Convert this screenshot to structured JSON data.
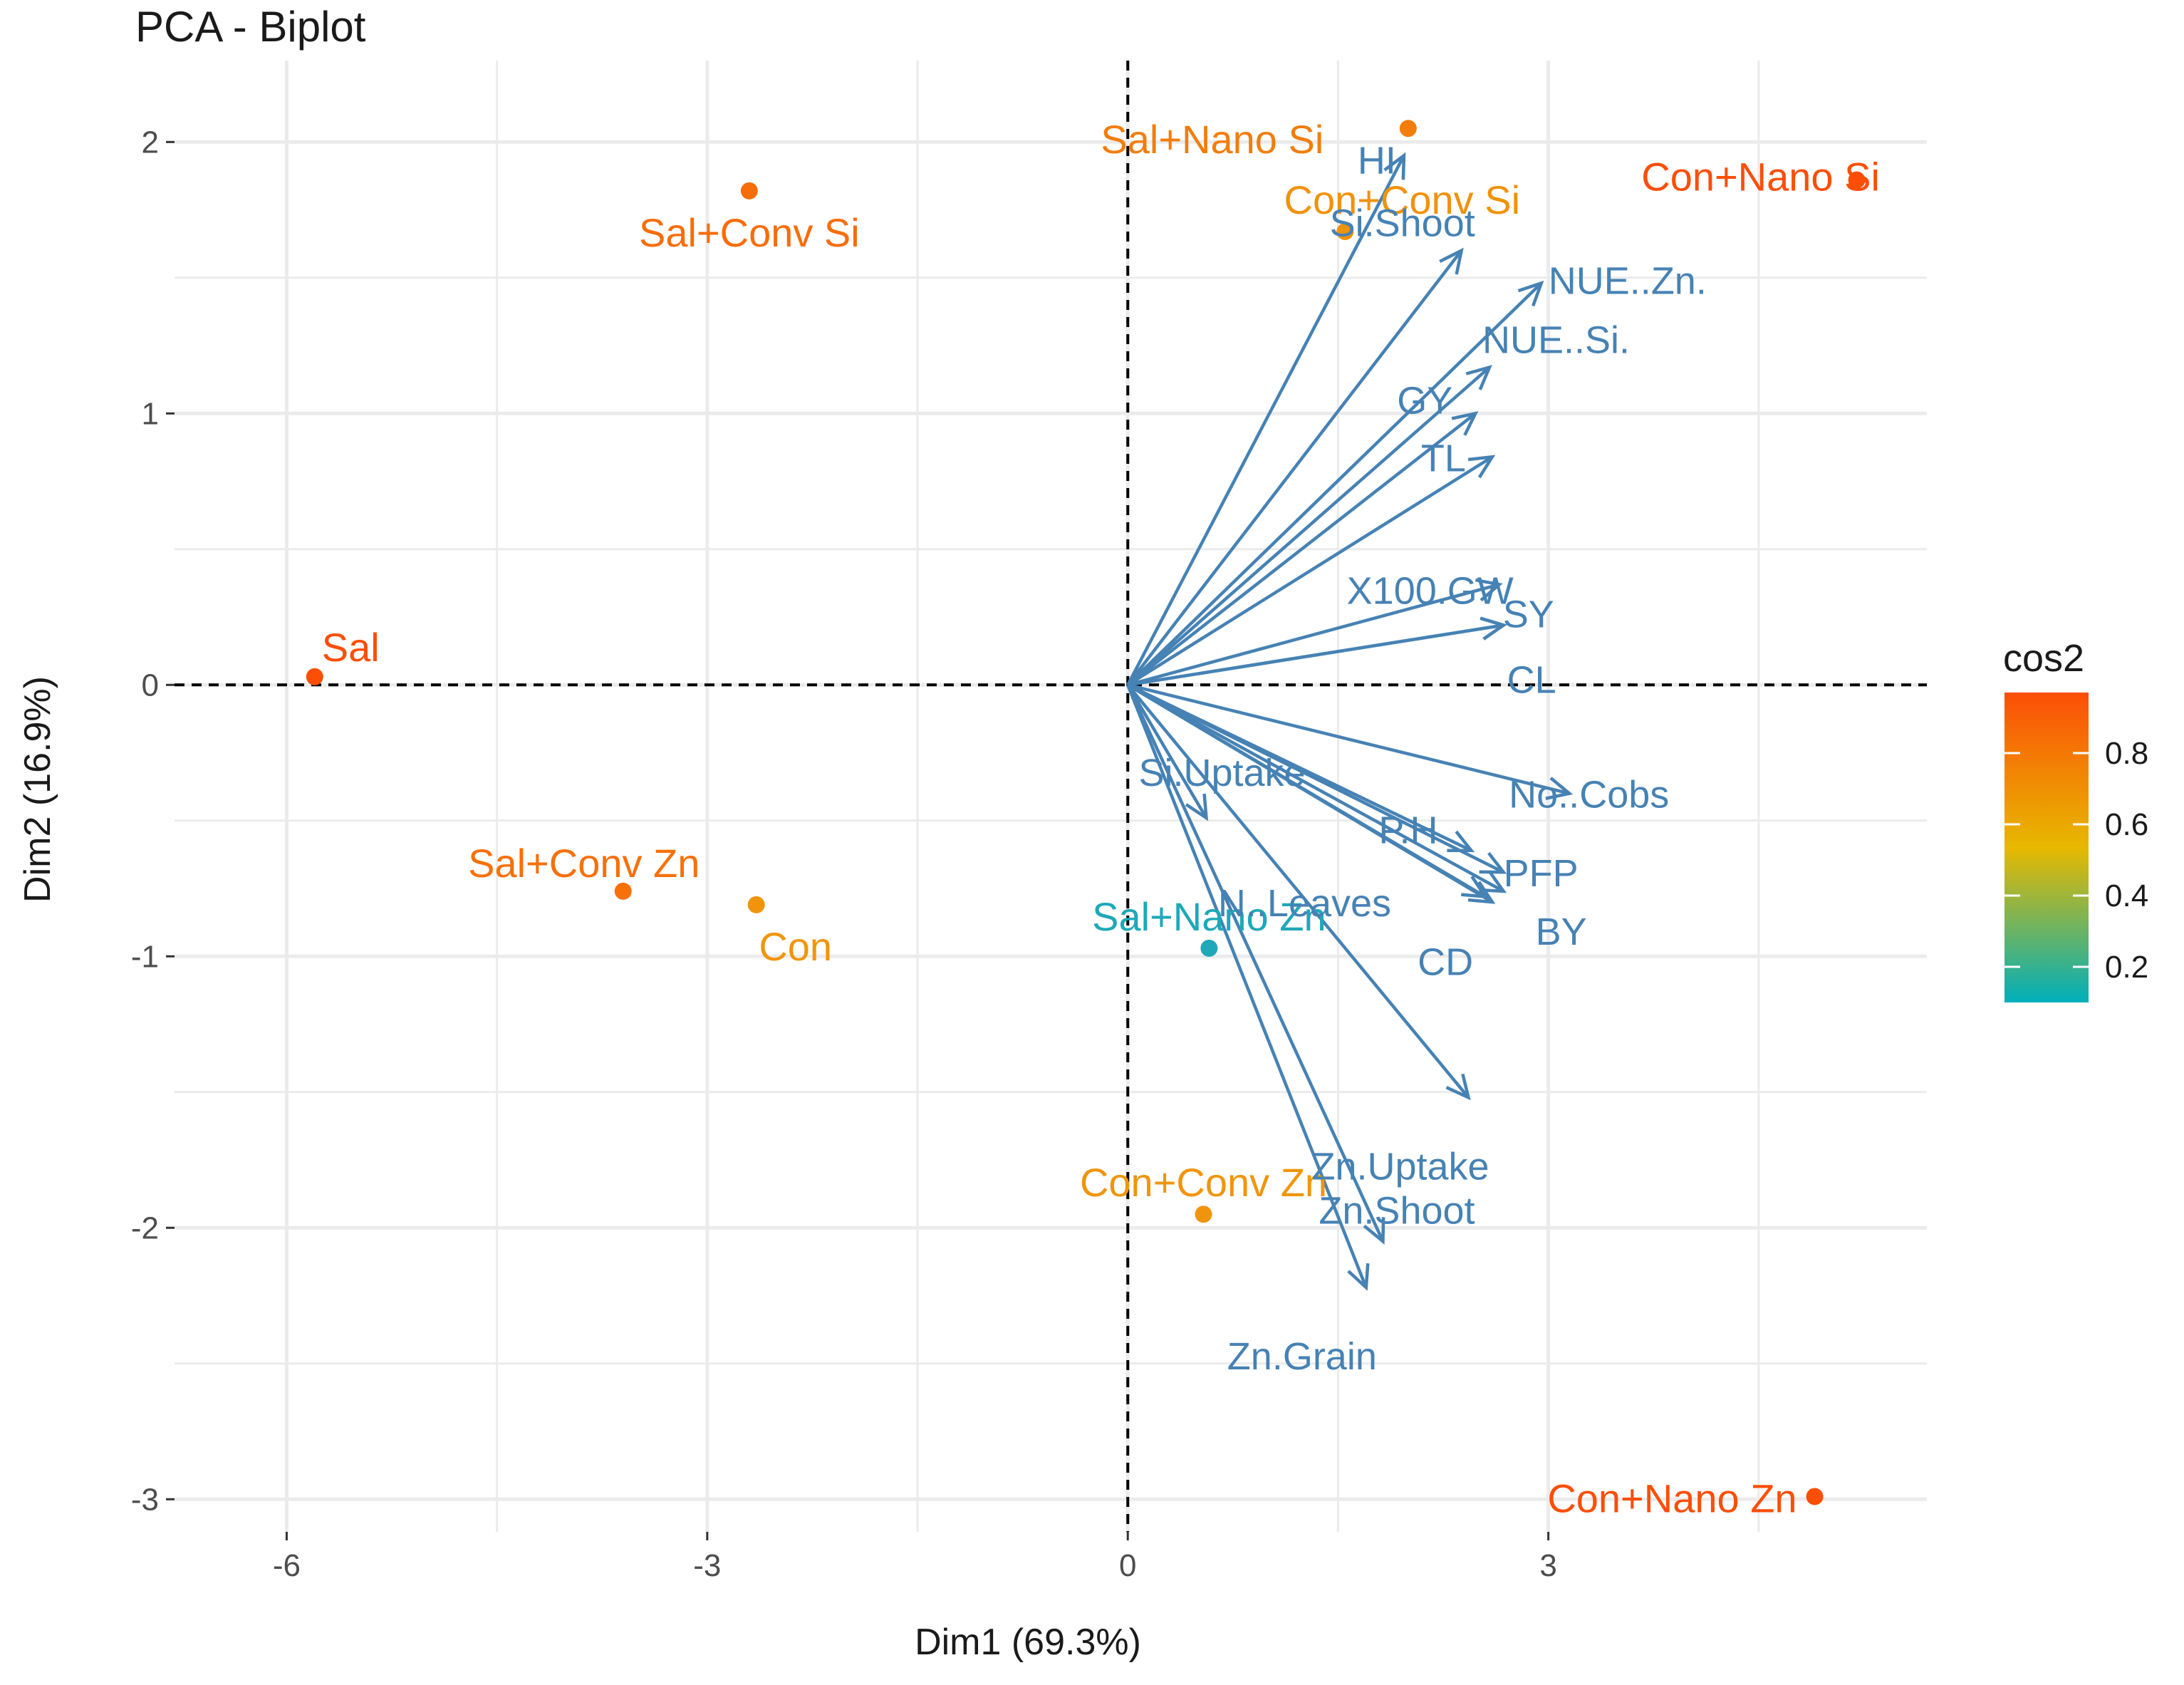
{
  "chart_data": {
    "type": "scatter",
    "title": "PCA - Biplot",
    "xlabel": "Dim1 (69.3%)",
    "ylabel": "Dim2 (16.9%)",
    "xlim": [
      -6.8,
      5.7
    ],
    "ylim": [
      -3.12,
      2.3
    ],
    "xticks": [
      -6,
      -3,
      0,
      3
    ],
    "yticks": [
      2,
      1,
      0,
      -1,
      -2,
      -3
    ],
    "grid": true,
    "reference_lines": [
      "x = 0 (dashed)",
      "y = 0 (dashed)"
    ],
    "individuals": [
      {
        "name": "Sal",
        "x": -5.8,
        "y": 0.03,
        "cos2": 0.95,
        "color": "#FC4E07"
      },
      {
        "name": "Sal+Conv Si",
        "x": -2.7,
        "y": 1.82,
        "cos2": 0.9,
        "color": "#F76D0A"
      },
      {
        "name": "Sal+Conv Zn",
        "x": -3.6,
        "y": -0.76,
        "cos2": 0.88,
        "color": "#F7700A"
      },
      {
        "name": "Con",
        "x": -2.65,
        "y": -0.81,
        "cos2": 0.72,
        "color": "#F0950B"
      },
      {
        "name": "Sal+Nano Si",
        "x": 2.0,
        "y": 2.05,
        "cos2": 0.82,
        "color": "#F27D0B"
      },
      {
        "name": "Con+Conv Si",
        "x": 1.55,
        "y": 1.67,
        "cos2": 0.75,
        "color": "#F0920B"
      },
      {
        "name": "Con+Nano Si",
        "x": 5.2,
        "y": 1.86,
        "cos2": 0.95,
        "color": "#FC4E07"
      },
      {
        "name": "Sal+Nano Zn",
        "x": 0.58,
        "y": -0.97,
        "cos2": 0.12,
        "color": "#1FA8B8"
      },
      {
        "name": "Con+Conv Zn",
        "x": 0.54,
        "y": -1.95,
        "cos2": 0.72,
        "color": "#F0950B"
      },
      {
        "name": "Con+Nano Zn",
        "x": 4.9,
        "y": -2.99,
        "cos2": 0.95,
        "color": "#FC4E07"
      }
    ],
    "variables": [
      {
        "name": "HI",
        "x": 1.97,
        "y": 1.95
      },
      {
        "name": "Si.Shoot",
        "x": 2.38,
        "y": 1.6
      },
      {
        "name": "NUE..Zn.",
        "x": 2.95,
        "y": 1.48
      },
      {
        "name": "NUE..Si.",
        "x": 2.58,
        "y": 1.17
      },
      {
        "name": "GY",
        "x": 2.48,
        "y": 1.0
      },
      {
        "name": "TL",
        "x": 2.6,
        "y": 0.84
      },
      {
        "name": "SY",
        "x": 2.65,
        "y": 0.37
      },
      {
        "name": "X100.GW",
        "x": 2.68,
        "y": 0.22
      },
      {
        "name": "CL",
        "x": 2.68,
        "y": 0.22
      },
      {
        "name": "No..Cobs",
        "x": 3.15,
        "y": -0.4
      },
      {
        "name": "PFP",
        "x": 2.68,
        "y": -0.69
      },
      {
        "name": "P.H",
        "x": 2.45,
        "y": -0.61
      },
      {
        "name": "BY",
        "x": 2.68,
        "y": -0.76
      },
      {
        "name": "N..Leaves",
        "x": 2.6,
        "y": -0.8
      },
      {
        "name": "CD",
        "x": 2.55,
        "y": -0.78
      },
      {
        "name": "Si.Uptake",
        "x": 0.56,
        "y": -0.49
      },
      {
        "name": "Zn.Uptake",
        "x": 2.43,
        "y": -1.52
      },
      {
        "name": "Zn.Shoot",
        "x": 1.82,
        "y": -2.05
      },
      {
        "name": "Zn.Grain",
        "x": 1.7,
        "y": -2.22
      }
    ],
    "variable_color": "#4682B4",
    "legend": {
      "title": "cos2",
      "position": "right",
      "ticks": [
        "0.8",
        "0.6",
        "0.4",
        "0.2"
      ],
      "tick_values": [
        0.8,
        0.6,
        0.4,
        0.2
      ],
      "range": [
        0.1,
        0.97
      ],
      "gradient": [
        "#00AFBB",
        "#E7B800",
        "#FC4E07"
      ]
    }
  }
}
